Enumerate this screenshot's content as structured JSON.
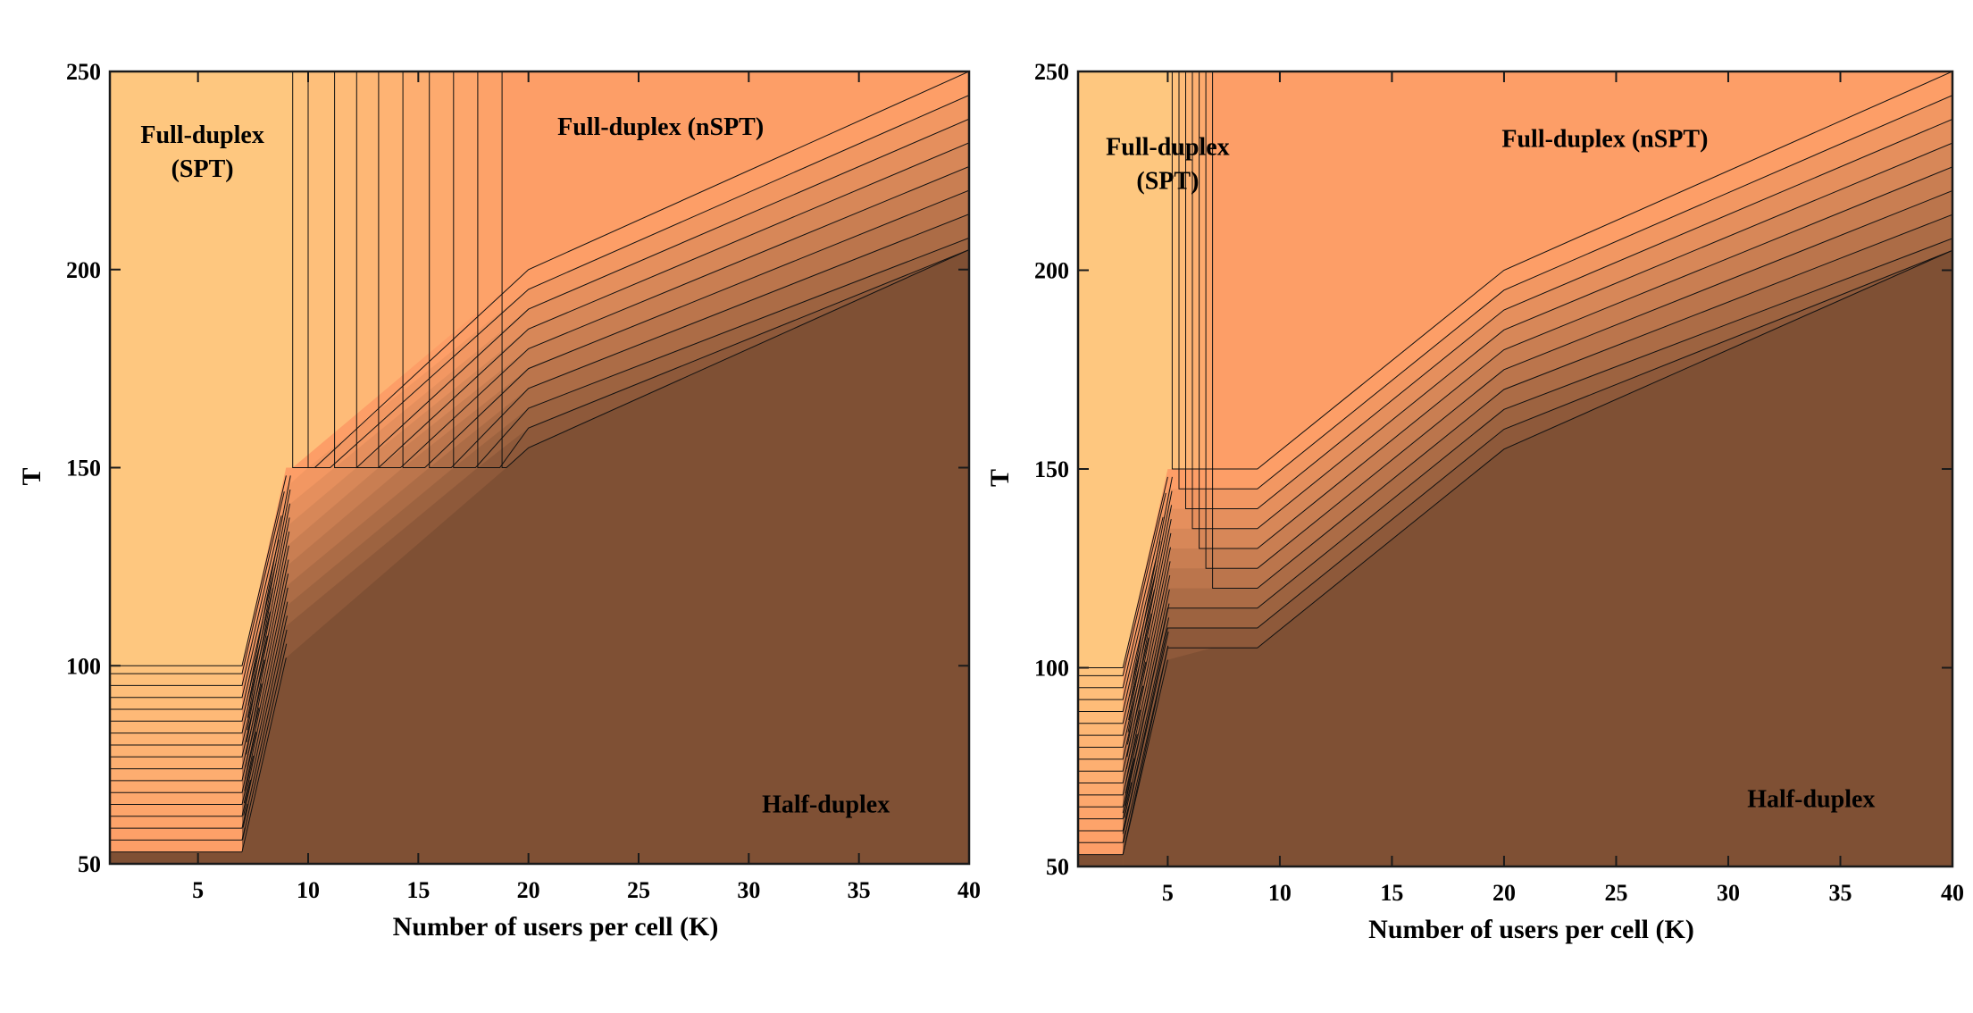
{
  "chart_data": [
    {
      "id": "left",
      "type": "contour",
      "title": "",
      "xlabel": "Number of users per cell (K)",
      "ylabel": "T",
      "xlim": [
        1,
        40
      ],
      "ylim": [
        50,
        250
      ],
      "xticks": [
        5,
        10,
        15,
        20,
        25,
        30,
        35,
        40
      ],
      "yticks": [
        50,
        100,
        150,
        200,
        250
      ],
      "colors": {
        "spt": "#fec77f",
        "nspt": "#fd9e67",
        "half": "#7f5034",
        "mid": "#d7895a"
      },
      "regions": {
        "spt_label": [
          "Full-duplex",
          "(SPT)"
        ],
        "nspt_label": "Full-duplex (nSPT)",
        "half_label": "Half-duplex"
      },
      "boundaries": {
        "spt_transition_k": [
          7,
          9
        ],
        "spt_upper_T": 100,
        "nspt_vertical_k": [
          9.3,
          10,
          11.2,
          12.2,
          13.2,
          14.3,
          15.5,
          16.6,
          17.7,
          18.8
        ],
        "nspt_top_at_k20": [
          200,
          195,
          190,
          185,
          180,
          175,
          170,
          165,
          160,
          155
        ],
        "nspt_top_at_k40": [
          250,
          244,
          238,
          232,
          226,
          220,
          214,
          208,
          202,
          205
        ],
        "spt_lower_T_levels": [
          53,
          56,
          59,
          62,
          65,
          68,
          71,
          74,
          77,
          80,
          83,
          86,
          89,
          92,
          95,
          98
        ],
        "half_edge": [
          [
            7,
            53
          ],
          [
            9,
            102
          ],
          [
            19,
            150
          ],
          [
            20,
            155
          ],
          [
            40,
            205
          ]
        ]
      }
    },
    {
      "id": "right",
      "type": "contour",
      "title": "",
      "xlabel": "Number of users per cell (K)",
      "ylabel": "T",
      "xlim": [
        1,
        40
      ],
      "ylim": [
        50,
        250
      ],
      "xticks": [
        5,
        10,
        15,
        20,
        25,
        30,
        35,
        40
      ],
      "yticks": [
        50,
        100,
        150,
        200,
        250
      ],
      "colors": {
        "spt": "#fec77f",
        "nspt": "#fd9e67",
        "half": "#7f5034",
        "mid": "#d7895a"
      },
      "regions": {
        "spt_label": [
          "Full-duplex",
          "(SPT)"
        ],
        "nspt_label": "Full-duplex (nSPT)",
        "half_label": "Half-duplex"
      },
      "boundaries": {
        "spt_transition_k": [
          3,
          5
        ],
        "spt_upper_T": 100,
        "nspt_vertical_k": [
          5.2,
          5.5,
          5.8,
          6.1,
          6.4,
          6.7,
          7
        ],
        "nspt_plateau_T": [
          150,
          145,
          140,
          135,
          130,
          125,
          120,
          115,
          110,
          105
        ],
        "nspt_top_at_k20": [
          200,
          195,
          190,
          185,
          180,
          175,
          170,
          165,
          160,
          155
        ],
        "nspt_top_at_k40": [
          250,
          244,
          238,
          232,
          226,
          220,
          214,
          208,
          202,
          205
        ],
        "spt_lower_T_levels": [
          53,
          56,
          59,
          62,
          65,
          68,
          71,
          74,
          77,
          80,
          83,
          86,
          89,
          92,
          95,
          98
        ],
        "half_edge": [
          [
            3,
            53
          ],
          [
            5,
            102
          ],
          [
            7,
            105
          ],
          [
            9,
            105
          ],
          [
            20,
            155
          ],
          [
            40,
            205
          ]
        ]
      }
    }
  ]
}
